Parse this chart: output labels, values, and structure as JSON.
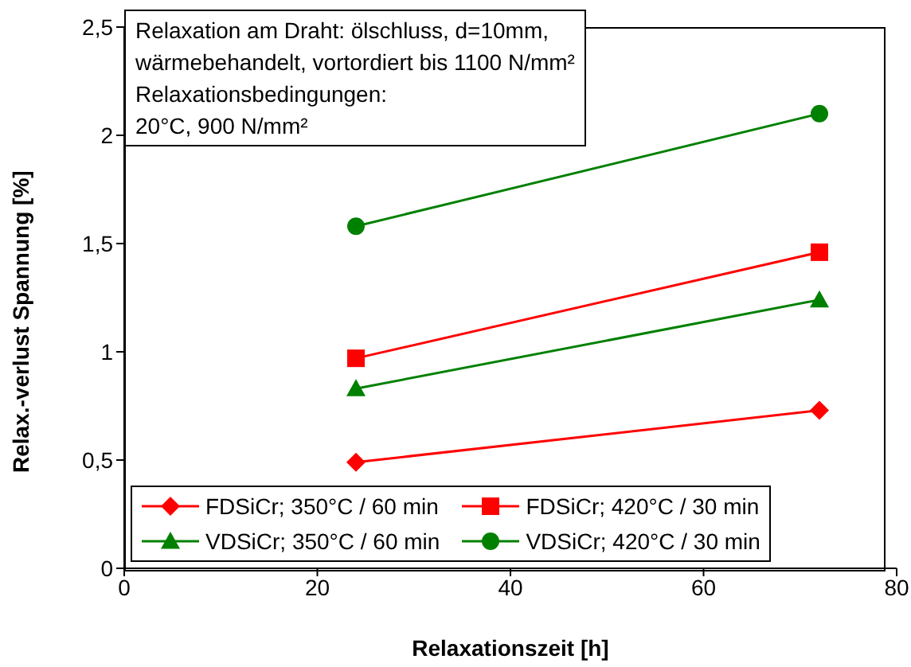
{
  "chart_data": {
    "type": "line",
    "xlabel": "Relaxationszeit [h]",
    "ylabel": "Relax.-verlust Spannung [%]",
    "annotations": [
      "Relaxation am Draht: ölschluss, d=10mm,",
      "wärmebehandelt, vortordiert bis 1100 N/mm²",
      "Relaxationsbedingungen:",
      "20°C, 900 N/mm²"
    ],
    "x": [
      24,
      72
    ],
    "series": [
      {
        "name": "FDSiCr; 350°C / 60 min",
        "color": "#ff0000",
        "values": [
          0.49,
          0.73
        ],
        "marker": "diamond"
      },
      {
        "name": "FDSiCr; 420°C / 30 min",
        "color": "#ff0000",
        "values": [
          0.97,
          1.46
        ],
        "marker": "square"
      },
      {
        "name": "VDSiCr; 350°C / 60 min",
        "color": "#008000",
        "values": [
          0.83,
          1.24
        ],
        "marker": "triangle"
      },
      {
        "name": "VDSiCr; 420°C / 30 min",
        "color": "#008000",
        "values": [
          1.58,
          2.1
        ],
        "marker": "circle"
      }
    ],
    "xlim": [
      0,
      80
    ],
    "xticks": [
      0,
      20,
      40,
      60,
      80
    ],
    "ylim": [
      0,
      2.5
    ],
    "yticks": [
      0,
      {
        "value": 0.5,
        "label": "0,5"
      },
      1,
      {
        "value": 1.5,
        "label": "1,5"
      },
      2,
      {
        "value": 2.5,
        "label": "2,5"
      }
    ],
    "grid": false,
    "legend": "bottom",
    "line_style": "solid"
  }
}
